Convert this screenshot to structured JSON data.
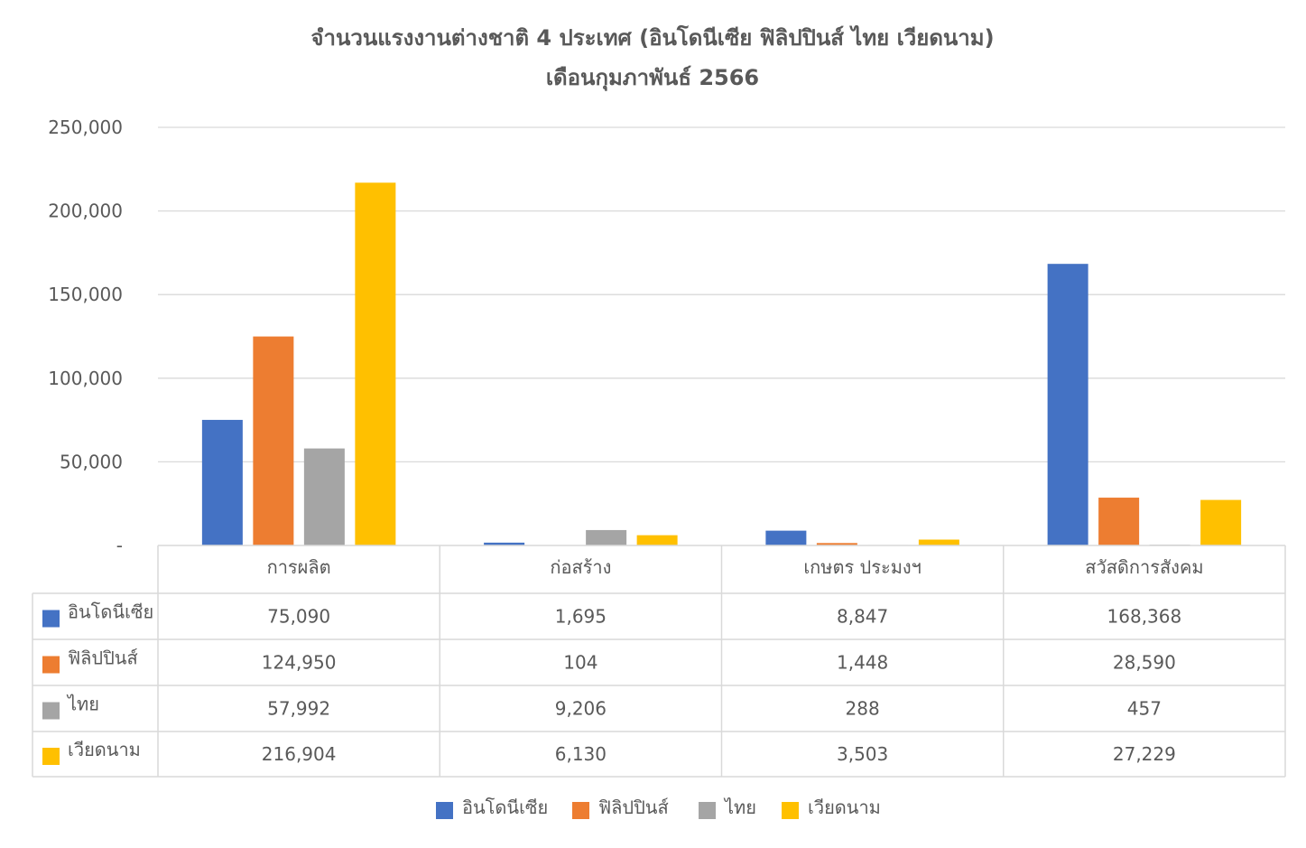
{
  "chart_data": {
    "type": "bar",
    "title": "จำนวนแรงงานต่างชาติ 4 ประเทศ (อินโดนีเซีย ฟิลิปปินส์ ไทย เวียดนาม)",
    "subtitle": "เดือนกุมภาพันธ์ 2566",
    "categories": [
      "การผลิต",
      "ก่อสร้าง",
      "เกษตร ประมงฯ",
      "สวัสดิการสังคม"
    ],
    "series": [
      {
        "name": "อินโดนีเซีย",
        "color": "#4472c4",
        "values": [
          75090,
          1695,
          8847,
          168368
        ],
        "labels": [
          "75,090",
          "1,695",
          "8,847",
          "168,368"
        ]
      },
      {
        "name": "ฟิลิปปินส์",
        "color": "#ed7d31",
        "values": [
          124950,
          104,
          1448,
          28590
        ],
        "labels": [
          "124,950",
          "104",
          "1,448",
          "28,590"
        ]
      },
      {
        "name": "ไทย",
        "color": "#a5a5a5",
        "values": [
          57992,
          9206,
          288,
          457
        ],
        "labels": [
          "57,992",
          "9,206",
          "288",
          "457"
        ]
      },
      {
        "name": "เวียดนาม",
        "color": "#ffc000",
        "values": [
          216904,
          6130,
          3503,
          27229
        ],
        "labels": [
          "216,904",
          "6,130",
          "3,503",
          "27,229"
        ]
      }
    ],
    "yticks": [
      "-",
      "50,000",
      "100,000",
      "150,000",
      "200,000",
      "250,000"
    ],
    "ylim": [
      0,
      250000
    ],
    "grid": true,
    "legend": "bottom",
    "data_table": true
  }
}
